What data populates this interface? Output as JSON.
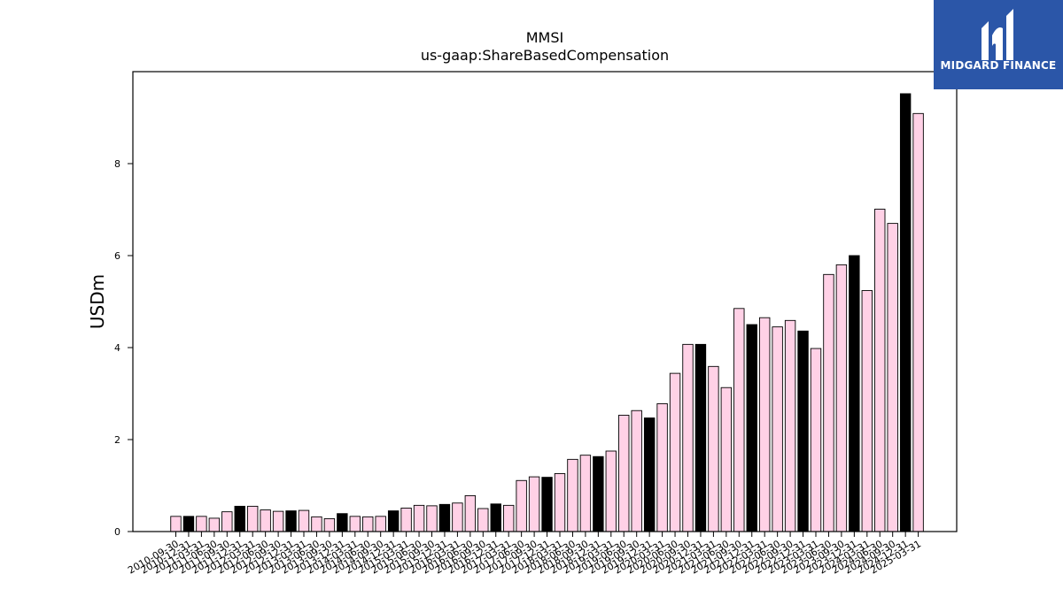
{
  "chart_data": {
    "type": "bar",
    "title": "MMSI",
    "subtitle": "us-gaap:ShareBasedCompensation",
    "xlabel": "",
    "ylabel": "USDm",
    "ylim": [
      0,
      10
    ],
    "yticks": [
      0,
      2,
      4,
      6,
      8
    ],
    "grid": false,
    "categories": [
      "2010-09-30",
      "2010-12-31",
      "2011-03-31",
      "2011-06-30",
      "2011-09-30",
      "2011-12-31",
      "2012-03-31",
      "2012-06-30",
      "2012-09-30",
      "2012-12-31",
      "2013-03-31",
      "2013-06-30",
      "2013-09-30",
      "2013-12-31",
      "2014-03-31",
      "2014-06-30",
      "2014-09-30",
      "2014-12-31",
      "2015-03-31",
      "2015-06-30",
      "2015-09-30",
      "2015-12-31",
      "2016-03-31",
      "2016-06-30",
      "2016-09-30",
      "2016-12-31",
      "2017-03-31",
      "2017-06-30",
      "2017-09-30",
      "2017-12-31",
      "2018-03-31",
      "2018-06-30",
      "2018-09-30",
      "2018-12-31",
      "2019-03-31",
      "2019-06-30",
      "2019-09-30",
      "2019-12-31",
      "2020-03-31",
      "2020-06-30",
      "2020-09-30",
      "2020-12-31",
      "2021-03-31",
      "2021-06-30",
      "2021-09-30",
      "2021-12-31",
      "2022-03-31",
      "2022-06-30",
      "2022-09-30",
      "2022-12-31",
      "2023-03-31",
      "2023-06-30",
      "2023-09-30",
      "2023-12-31",
      "2024-03-31",
      "2024-06-30",
      "2024-09-30",
      "2024-12-31",
      "2025-03-31"
    ],
    "values": [
      0.33,
      0.33,
      0.33,
      0.29,
      0.43,
      0.55,
      0.55,
      0.47,
      0.44,
      0.45,
      0.46,
      0.32,
      0.28,
      0.39,
      0.33,
      0.32,
      0.33,
      0.45,
      0.51,
      0.57,
      0.56,
      0.59,
      0.62,
      0.78,
      0.5,
      0.6,
      0.57,
      1.11,
      1.19,
      1.18,
      1.26,
      1.57,
      1.66,
      1.63,
      1.75,
      2.53,
      2.63,
      2.47,
      2.78,
      3.44,
      4.07,
      4.07,
      3.59,
      3.13,
      4.85,
      4.5,
      4.65,
      4.45,
      4.59,
      4.36,
      3.98,
      5.59,
      5.8,
      6.0,
      5.24,
      7.01,
      6.7,
      9.52,
      9.09
    ],
    "highlight": [
      false,
      true,
      false,
      false,
      false,
      true,
      false,
      false,
      false,
      true,
      false,
      false,
      false,
      true,
      false,
      false,
      false,
      true,
      false,
      false,
      false,
      true,
      false,
      false,
      false,
      true,
      false,
      false,
      false,
      true,
      false,
      false,
      false,
      true,
      false,
      false,
      false,
      true,
      false,
      false,
      false,
      true,
      false,
      false,
      false,
      true,
      false,
      false,
      false,
      true,
      false,
      false,
      false,
      true,
      false,
      false,
      false,
      true,
      false
    ],
    "colors": {
      "bar": "#ffd1e6",
      "highlight_bar": "#000000",
      "edge": "#000000"
    }
  },
  "logo": {
    "text": "MIDGARD FINANCE",
    "background": "#2b56a8"
  }
}
